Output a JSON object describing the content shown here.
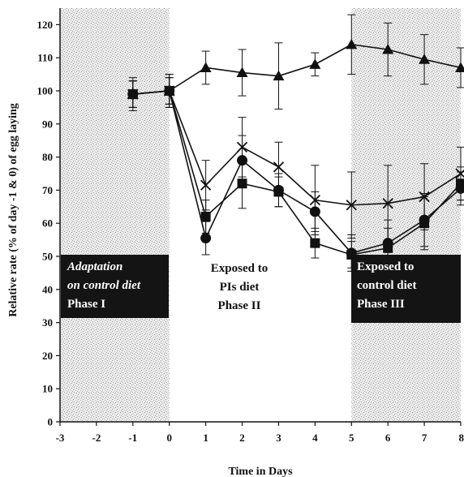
{
  "chart_data": {
    "type": "line",
    "xlabel": "Time in Days",
    "ylabel": "Relative rate (% of day -1 & 0) of egg laying",
    "xlim": [
      -3,
      8
    ],
    "ylim": [
      0,
      125
    ],
    "x_ticks": [
      "-3",
      "-2",
      "-1",
      "0",
      "1",
      "2",
      "3",
      "4",
      "5",
      "6",
      "7",
      "8"
    ],
    "y_ticks": [
      "0",
      "10",
      "20",
      "30",
      "40",
      "50",
      "60",
      "70",
      "80",
      "90",
      "100",
      "110",
      "120"
    ],
    "shaded_regions": [
      {
        "x_start": -3,
        "x_end": 0
      },
      {
        "x_start": 5,
        "x_end": 8
      }
    ],
    "phase_labels": [
      {
        "lines": [
          "Adaptation",
          "on control diet",
          "Phase I"
        ],
        "style": "dark-box",
        "italic": true
      },
      {
        "lines": [
          "Exposed to",
          "PIs diet",
          "Phase II"
        ],
        "style": "plain",
        "italic": false
      },
      {
        "lines": [
          "Exposed to",
          "control diet",
          "Phase III"
        ],
        "style": "dark-box",
        "italic": false
      }
    ],
    "series": [
      {
        "marker": "triangle",
        "x": [
          -1,
          0,
          1,
          2,
          3,
          4,
          5,
          6,
          7,
          8
        ],
        "values": [
          99,
          100,
          107,
          105.5,
          104.5,
          108,
          114,
          112.5,
          109.5,
          107
        ],
        "err": [
          5,
          5,
          5,
          7,
          10,
          3.5,
          9,
          8,
          7.5,
          6
        ]
      },
      {
        "marker": "cross",
        "x": [
          -1,
          0,
          1,
          2,
          3,
          4,
          5,
          6,
          7,
          8
        ],
        "values": [
          99,
          100,
          71.5,
          83,
          77,
          67,
          65.5,
          66,
          68,
          75
        ],
        "err": [
          4,
          5,
          7.5,
          9,
          7.5,
          10.5,
          10,
          11.5,
          10,
          8
        ]
      },
      {
        "marker": "circle",
        "x": [
          -1,
          0,
          1,
          2,
          3,
          4,
          5,
          6,
          7,
          8
        ],
        "values": [
          99,
          100,
          55.5,
          79,
          70,
          63.5,
          51,
          54,
          61,
          70.5
        ],
        "err": [
          4,
          4,
          5,
          7.5,
          5,
          6,
          5.5,
          7,
          8,
          5
        ]
      },
      {
        "marker": "square",
        "x": [
          -1,
          0,
          1,
          2,
          3,
          4,
          5,
          6,
          7,
          8
        ],
        "values": [
          99,
          100,
          62,
          72,
          69.5,
          54,
          50.5,
          52.5,
          60,
          72
        ],
        "err": [
          4,
          4,
          5,
          7.5,
          4.5,
          4.5,
          4,
          6,
          8,
          5
        ]
      }
    ]
  }
}
